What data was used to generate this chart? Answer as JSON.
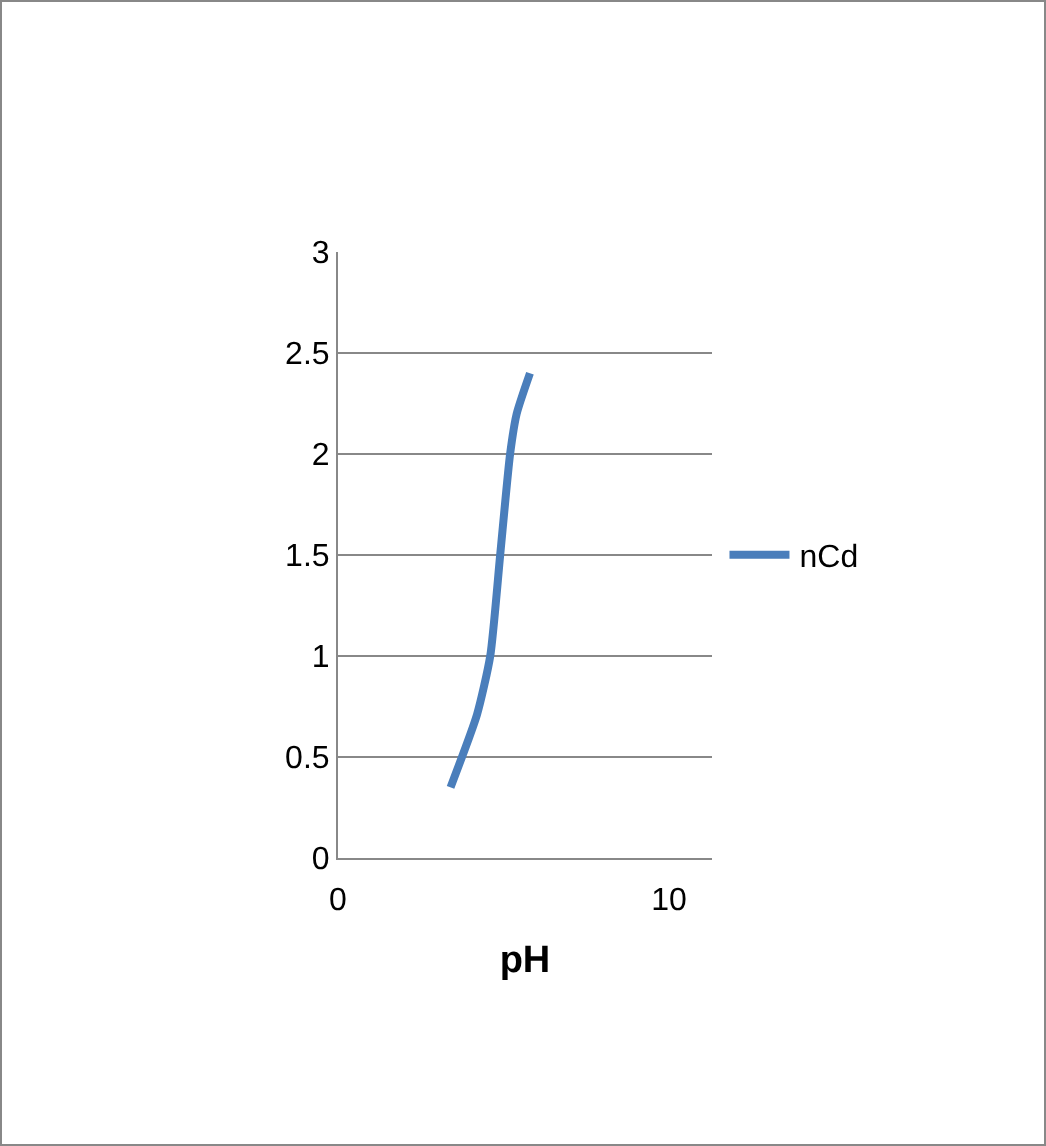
{
  "chart_data": {
    "type": "line",
    "xlabel": "pH",
    "series": [
      {
        "name": "nCd",
        "color": "#4a7ebb",
        "x": [
          3.4,
          4.2,
          4.6,
          4.9,
          5.2,
          5.4,
          5.8
        ],
        "values": [
          0.35,
          0.71,
          1.0,
          1.5,
          2.0,
          2.2,
          2.4
        ]
      }
    ],
    "xlim": [
      0,
      11.3
    ],
    "xticks": [
      0,
      10
    ],
    "ylim": [
      0,
      3
    ],
    "yticks": [
      0,
      0.5,
      1,
      1.5,
      2,
      2.5,
      3
    ],
    "grid": "y",
    "legend": "right",
    "marker": "none",
    "line_style": "solid"
  }
}
